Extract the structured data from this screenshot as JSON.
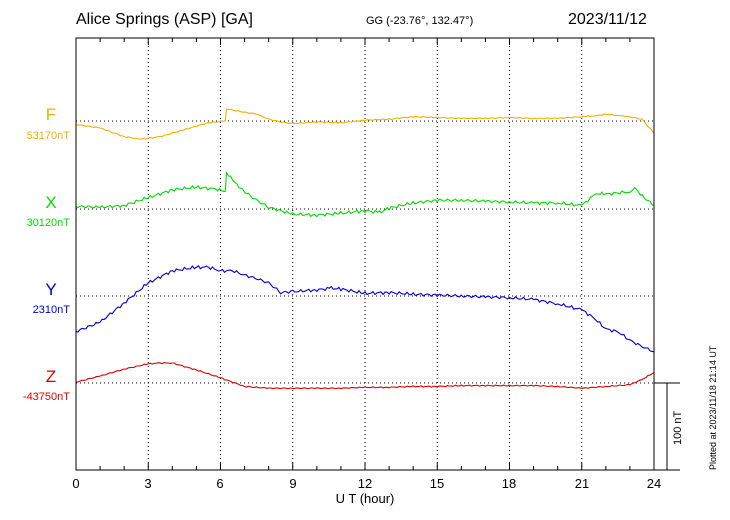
{
  "header": {
    "station": "Alice Springs (ASP)  [GA]",
    "coords": "GG (-23.76°, 132.47°)",
    "date": "2023/11/12"
  },
  "footer": {
    "plotted": "Plotted at 2023/11/18 21:14 UT",
    "scale_label": "100 nT"
  },
  "colors": {
    "F": "#f0b000",
    "X": "#00dd00",
    "Y": "#0000cc",
    "Z": "#dd0000"
  },
  "chart_data": {
    "type": "line",
    "title": "Alice Springs (ASP)  [GA]",
    "xlabel": "U T (hour)",
    "ylabel": "",
    "xlim": [
      0,
      24
    ],
    "xticks": [
      0,
      3,
      6,
      9,
      12,
      15,
      18,
      21,
      24
    ],
    "xtick_labels": [
      "0",
      "3",
      "6",
      "9",
      "12",
      "15",
      "18",
      "21",
      "24"
    ],
    "grid": true,
    "scale_bar_nT": 100,
    "series": [
      {
        "name": "F",
        "baseline_label": "53170nT",
        "baseline": 53170,
        "points": [
          [
            0,
            53166
          ],
          [
            1,
            53162
          ],
          [
            2,
            53152
          ],
          [
            2.7,
            53149
          ],
          [
            3.5,
            53152
          ],
          [
            4.5,
            53160
          ],
          [
            5.5,
            53168
          ],
          [
            6.2,
            53170
          ],
          [
            6.25,
            53184
          ],
          [
            7,
            53180
          ],
          [
            7.5,
            53178
          ],
          [
            8,
            53172
          ],
          [
            8.5,
            53169
          ],
          [
            9,
            53167
          ],
          [
            10,
            53169
          ],
          [
            11,
            53168
          ],
          [
            12,
            53171
          ],
          [
            13,
            53172
          ],
          [
            14,
            53175
          ],
          [
            15,
            53174
          ],
          [
            16,
            53173
          ],
          [
            17,
            53173
          ],
          [
            18,
            53174
          ],
          [
            19,
            53173
          ],
          [
            20,
            53173
          ],
          [
            21,
            53175
          ],
          [
            21.6,
            53176
          ],
          [
            22,
            53178
          ],
          [
            22.6,
            53176
          ],
          [
            23,
            53175
          ],
          [
            23.5,
            53172
          ],
          [
            24,
            53156
          ]
        ]
      },
      {
        "name": "X",
        "baseline_label": "30120nT",
        "baseline": 30120,
        "points": [
          [
            0,
            30123
          ],
          [
            1,
            30122
          ],
          [
            2,
            30124
          ],
          [
            3,
            30133
          ],
          [
            4,
            30142
          ],
          [
            5,
            30145
          ],
          [
            5.8,
            30143
          ],
          [
            6.2,
            30140
          ],
          [
            6.25,
            30162
          ],
          [
            6.6,
            30150
          ],
          [
            7,
            30140
          ],
          [
            7.5,
            30130
          ],
          [
            8,
            30122
          ],
          [
            9,
            30114
          ],
          [
            10,
            30113
          ],
          [
            11,
            30115
          ],
          [
            12,
            30118
          ],
          [
            12.6,
            30116
          ],
          [
            13,
            30121
          ],
          [
            14,
            30127
          ],
          [
            15,
            30130
          ],
          [
            16,
            30130
          ],
          [
            17,
            30129
          ],
          [
            18,
            30128
          ],
          [
            19,
            30127
          ],
          [
            20,
            30127
          ],
          [
            21,
            30124
          ],
          [
            21.6,
            30138
          ],
          [
            22,
            30137
          ],
          [
            23,
            30140
          ],
          [
            23.2,
            30144
          ],
          [
            23.6,
            30133
          ],
          [
            24,
            30124
          ]
        ]
      },
      {
        "name": "Y",
        "baseline_label": "2310nT",
        "baseline": 2310,
        "points": [
          [
            0,
            2269
          ],
          [
            1,
            2280
          ],
          [
            2,
            2302
          ],
          [
            3,
            2325
          ],
          [
            4,
            2339
          ],
          [
            5,
            2343
          ],
          [
            5.5,
            2343
          ],
          [
            6,
            2339
          ],
          [
            6.5,
            2339
          ],
          [
            7,
            2334
          ],
          [
            7.5,
            2330
          ],
          [
            8,
            2325
          ],
          [
            8.5,
            2314
          ],
          [
            9,
            2315
          ],
          [
            10,
            2317
          ],
          [
            10.6,
            2319
          ],
          [
            11,
            2318
          ],
          [
            12,
            2313
          ],
          [
            13,
            2314
          ],
          [
            14,
            2312
          ],
          [
            15,
            2311
          ],
          [
            16,
            2310
          ],
          [
            17,
            2309
          ],
          [
            18,
            2308
          ],
          [
            19,
            2306
          ],
          [
            20,
            2301
          ],
          [
            21,
            2294
          ],
          [
            21.5,
            2285
          ],
          [
            22,
            2272
          ],
          [
            22.5,
            2269
          ],
          [
            23,
            2259
          ],
          [
            23.5,
            2252
          ],
          [
            24,
            2246
          ]
        ]
      },
      {
        "name": "Z",
        "baseline_label": "-43750nT",
        "baseline": -43750,
        "points": [
          [
            0,
            -43749
          ],
          [
            1,
            -43742
          ],
          [
            2,
            -43734
          ],
          [
            3,
            -43728
          ],
          [
            3.5,
            -43727
          ],
          [
            4,
            -43727
          ],
          [
            5,
            -43735
          ],
          [
            6,
            -43744
          ],
          [
            7,
            -43754
          ],
          [
            8,
            -43756
          ],
          [
            9,
            -43756
          ],
          [
            10,
            -43756
          ],
          [
            11,
            -43756
          ],
          [
            12,
            -43755
          ],
          [
            13,
            -43755
          ],
          [
            14,
            -43754
          ],
          [
            15,
            -43754
          ],
          [
            16,
            -43753
          ],
          [
            17,
            -43753
          ],
          [
            18,
            -43753
          ],
          [
            19,
            -43753
          ],
          [
            20,
            -43754
          ],
          [
            21,
            -43756
          ],
          [
            22,
            -43754
          ],
          [
            23,
            -43752
          ],
          [
            23.5,
            -43746
          ],
          [
            24,
            -43738
          ]
        ]
      }
    ]
  }
}
